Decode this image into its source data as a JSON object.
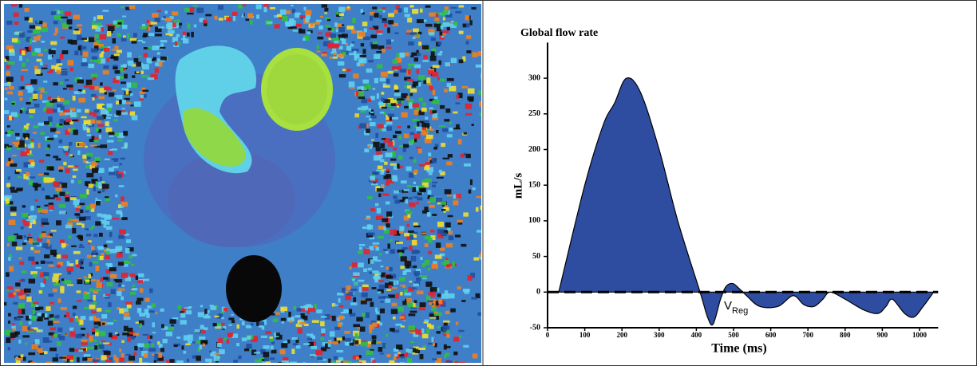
{
  "chart_data": {
    "type": "area",
    "title": "Global flow rate",
    "x_label": "Time (ms)",
    "y_label": "mL/s",
    "annotation": {
      "text": "V",
      "subscript": "Reg"
    },
    "x": [
      30,
      100,
      150,
      180,
      212,
      250,
      300,
      350,
      410,
      430,
      445,
      465,
      480,
      498,
      515,
      535,
      570,
      620,
      660,
      690,
      717,
      740,
      760,
      800,
      850,
      888,
      910,
      927,
      960,
      985,
      1010,
      1038
    ],
    "series": [
      {
        "color": "#2e4da0",
        "values": [
          0,
          150,
          235,
          265,
          300,
          280,
          200,
          100,
          0,
          -35,
          -45,
          -10,
          8,
          12,
          5,
          -5,
          -20,
          -20,
          -5,
          -18,
          -20,
          -10,
          0,
          -10,
          -25,
          -30,
          -20,
          -10,
          -30,
          -35,
          -20,
          0
        ]
      }
    ],
    "xlim": [
      0,
      1050
    ],
    "xticks": [
      0,
      100,
      200,
      300,
      400,
      500,
      600,
      700,
      800,
      900,
      1000
    ],
    "ylim": [
      -50,
      350
    ],
    "yticks": [
      -50,
      0,
      50,
      100,
      150,
      200,
      250,
      300
    ],
    "zero_line": "dashed"
  }
}
